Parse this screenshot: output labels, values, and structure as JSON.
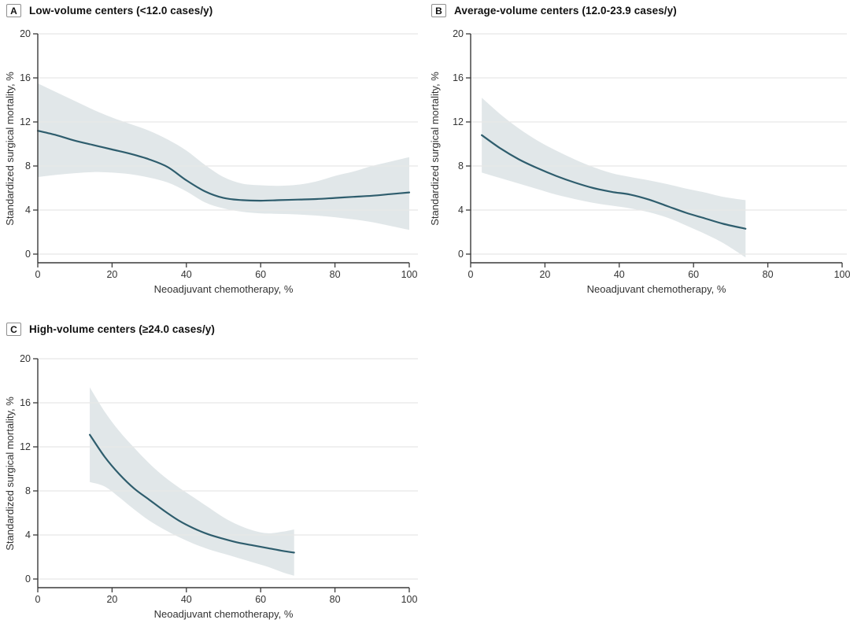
{
  "chart_data": {
    "type": "line",
    "legend": "none",
    "grid": "horizontal",
    "colors": {
      "line": "#2e5d6d",
      "band": "#e1e7e9",
      "grid": "#e8e8e8",
      "axis": "#3a3a3a",
      "text": "#333333"
    },
    "panels": [
      {
        "label": "A",
        "title": "Low-volume centers (<12.0 cases/y)",
        "xlabel": "Neoadjuvant chemotherapy, %",
        "ylabel": "Standardized surgical mortality, %",
        "xlim": [
          0,
          100
        ],
        "ylim": [
          0,
          20
        ],
        "xticks": [
          0,
          20,
          40,
          60,
          80,
          100
        ],
        "yticks": [
          0,
          4,
          8,
          12,
          16,
          20
        ],
        "x": [
          0,
          5,
          10,
          15,
          20,
          25,
          30,
          35,
          40,
          45,
          50,
          55,
          60,
          65,
          70,
          75,
          80,
          85,
          90,
          95,
          100
        ],
        "y": [
          11.2,
          10.8,
          10.3,
          9.9,
          9.5,
          9.1,
          8.6,
          7.9,
          6.7,
          5.7,
          5.1,
          4.9,
          4.85,
          4.9,
          4.95,
          5.0,
          5.1,
          5.2,
          5.3,
          5.45,
          5.6
        ],
        "ci_upper": [
          15.5,
          14.7,
          13.9,
          13.1,
          12.4,
          11.8,
          11.2,
          10.4,
          9.4,
          8.1,
          7.0,
          6.4,
          6.25,
          6.2,
          6.3,
          6.6,
          7.1,
          7.5,
          8.0,
          8.4,
          8.8
        ],
        "ci_lower": [
          7.0,
          7.2,
          7.35,
          7.45,
          7.4,
          7.25,
          6.95,
          6.5,
          5.7,
          4.7,
          4.15,
          3.85,
          3.7,
          3.65,
          3.6,
          3.5,
          3.35,
          3.15,
          2.9,
          2.55,
          2.2
        ]
      },
      {
        "label": "B",
        "title": "Average-volume centers (12.0-23.9 cases/y)",
        "xlabel": "Neoadjuvant chemotherapy, %",
        "ylabel": "Standardized surgical mortality, %",
        "xlim": [
          0,
          100
        ],
        "ylim": [
          0,
          20
        ],
        "xticks": [
          0,
          20,
          40,
          60,
          80,
          100
        ],
        "yticks": [
          0,
          4,
          8,
          12,
          16,
          20
        ],
        "x": [
          3,
          8,
          13,
          18,
          23,
          28,
          33,
          38,
          43,
          48,
          53,
          58,
          63,
          68,
          74
        ],
        "y": [
          10.8,
          9.6,
          8.6,
          7.8,
          7.1,
          6.5,
          6.0,
          5.65,
          5.4,
          4.95,
          4.35,
          3.75,
          3.25,
          2.75,
          2.3
        ],
        "ci_upper": [
          14.2,
          12.7,
          11.4,
          10.3,
          9.4,
          8.6,
          7.9,
          7.35,
          7.0,
          6.7,
          6.35,
          5.95,
          5.6,
          5.2,
          4.9
        ],
        "ci_lower": [
          7.4,
          6.9,
          6.4,
          5.9,
          5.4,
          5.0,
          4.65,
          4.4,
          4.15,
          3.8,
          3.3,
          2.6,
          1.85,
          1.0,
          -0.3
        ]
      },
      {
        "label": "C",
        "title": "High-volume centers (≥24.0 cases/y)",
        "xlabel": "Neoadjuvant chemotherapy, %",
        "ylabel": "Standardized surgical mortality, %",
        "xlim": [
          0,
          100
        ],
        "ylim": [
          0,
          20
        ],
        "xticks": [
          0,
          20,
          40,
          60,
          80,
          100
        ],
        "yticks": [
          0,
          4,
          8,
          12,
          16,
          20
        ],
        "x": [
          14,
          18,
          22,
          26,
          30,
          34,
          38,
          42,
          46,
          50,
          54,
          58,
          62,
          66,
          69
        ],
        "y": [
          13.1,
          11.1,
          9.5,
          8.2,
          7.2,
          6.2,
          5.3,
          4.6,
          4.05,
          3.65,
          3.3,
          3.05,
          2.8,
          2.55,
          2.4
        ],
        "ci_upper": [
          17.4,
          15.2,
          13.4,
          11.9,
          10.5,
          9.3,
          8.3,
          7.4,
          6.5,
          5.6,
          4.9,
          4.4,
          4.15,
          4.3,
          4.5
        ],
        "ci_lower": [
          8.8,
          8.4,
          7.4,
          6.3,
          5.3,
          4.5,
          3.8,
          3.2,
          2.7,
          2.3,
          1.9,
          1.5,
          1.1,
          0.6,
          0.3
        ]
      }
    ]
  }
}
